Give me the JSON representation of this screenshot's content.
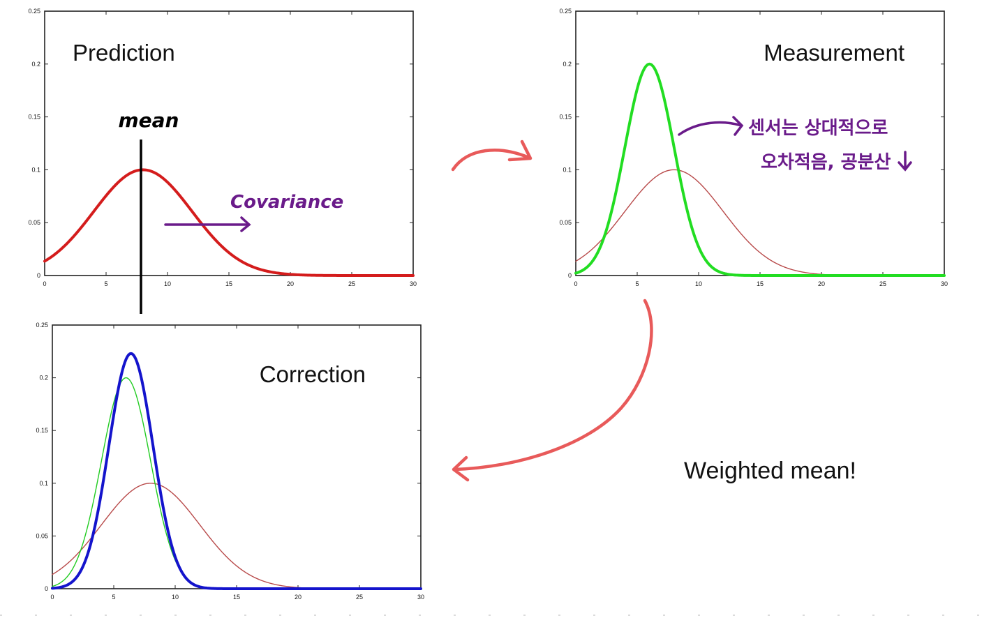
{
  "chart_data": [
    {
      "type": "line",
      "title": "Prediction",
      "xlim": [
        0,
        30
      ],
      "ylim": [
        0,
        0.25
      ],
      "x_ticks": [
        "0",
        "5",
        "10",
        "15",
        "20",
        "25",
        "30"
      ],
      "y_ticks": [
        "0",
        "0.05",
        "0.1",
        "0.15",
        "0.2",
        "0.25"
      ],
      "grid": false,
      "series": [
        {
          "color": "#d41c1c",
          "mean": 8,
          "sigma": 4,
          "peak": 0.1,
          "style": "thick"
        }
      ]
    },
    {
      "type": "line",
      "title": "Measurement",
      "xlim": [
        0,
        30
      ],
      "ylim": [
        0,
        0.25
      ],
      "x_ticks": [
        "0",
        "5",
        "10",
        "15",
        "20",
        "25",
        "30"
      ],
      "y_ticks": [
        "0",
        "0.05",
        "0.1",
        "0.15",
        "0.2",
        "0.25"
      ],
      "grid": false,
      "series": [
        {
          "color": "#b84a4a",
          "mean": 8,
          "sigma": 4,
          "peak": 0.1,
          "style": "thin"
        },
        {
          "color": "#22dd22",
          "mean": 6,
          "sigma": 2,
          "peak": 0.2,
          "style": "thick"
        }
      ]
    },
    {
      "type": "line",
      "title": "Correction",
      "xlim": [
        0,
        30
      ],
      "ylim": [
        0,
        0.25
      ],
      "x_ticks": [
        "0",
        "5",
        "10",
        "15",
        "20",
        "25",
        "30"
      ],
      "y_ticks": [
        "0",
        "0.05",
        "0.1",
        "0.15",
        "0.2",
        "0.25"
      ],
      "grid": false,
      "series": [
        {
          "color": "#b84a4a",
          "mean": 8,
          "sigma": 4,
          "peak": 0.1,
          "style": "thin"
        },
        {
          "color": "#22cc22",
          "mean": 6,
          "sigma": 2,
          "peak": 0.2,
          "style": "thin"
        },
        {
          "color": "#1414cc",
          "mean": 6.4,
          "sigma": 1.8,
          "peak": 0.223,
          "style": "thick"
        }
      ]
    }
  ],
  "annotations": {
    "mean_label": "mean",
    "covariance_label": "Covariance",
    "sensor_line1": "센서는 상대적으로",
    "sensor_line2": "오차적음, 공분산",
    "weighted_mean": "Weighted mean!"
  },
  "colors": {
    "annotation_purple": "#6a1b8a",
    "arrow_red": "#e85a5a"
  }
}
